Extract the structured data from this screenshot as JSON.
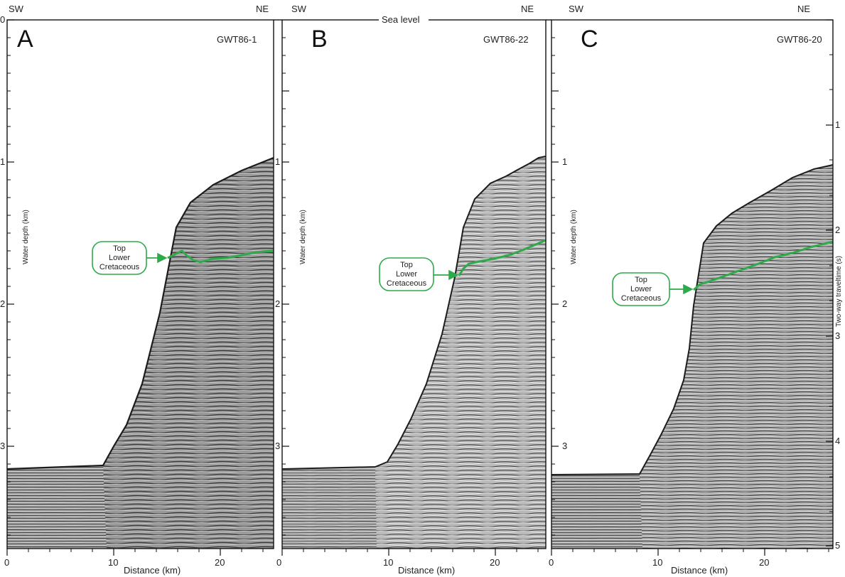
{
  "figure": {
    "sea_level_label": "Sea level",
    "panels": [
      {
        "letter": "A",
        "line_name": "GWT86-1",
        "orientation_left": "SW",
        "orientation_right": "NE",
        "depth_axis_title": "Water depth (km)",
        "depth_ticks": [
          "0",
          "1",
          "2",
          "3"
        ],
        "distance_axis_title": "Distance (km)",
        "distance_ticks": [
          "0",
          "10",
          "20"
        ],
        "horizon_label": [
          "Top",
          "Lower",
          "Cretaceous"
        ]
      },
      {
        "letter": "B",
        "line_name": "GWT86-22",
        "orientation_left": "SW",
        "orientation_right": "NE",
        "depth_axis_title": "Water depth (km)",
        "depth_ticks": [
          "1",
          "2",
          "3"
        ],
        "distance_axis_title": "Distance (km)",
        "distance_ticks": [
          "0",
          "10",
          "20"
        ],
        "horizon_label": [
          "Top",
          "Lower",
          "Cretaceous"
        ]
      },
      {
        "letter": "C",
        "line_name": "GWT86-20",
        "orientation_left": "SW",
        "orientation_right": "NE",
        "depth_axis_title": "Water depth (km)",
        "depth_ticks": [
          "1",
          "2",
          "3"
        ],
        "distance_axis_title": "Distance (km)",
        "distance_ticks": [
          "0",
          "10",
          "20"
        ],
        "horizon_label": [
          "Top",
          "Lower",
          "Cretaceous"
        ],
        "twt_axis_title": "Two-way traveltime (s)",
        "twt_ticks": [
          "1",
          "2",
          "3",
          "4",
          "5"
        ]
      }
    ],
    "colors": {
      "horizon": "#2eaa4a",
      "seismic_fill": "#8a8a8a",
      "frame": "#111111"
    }
  }
}
